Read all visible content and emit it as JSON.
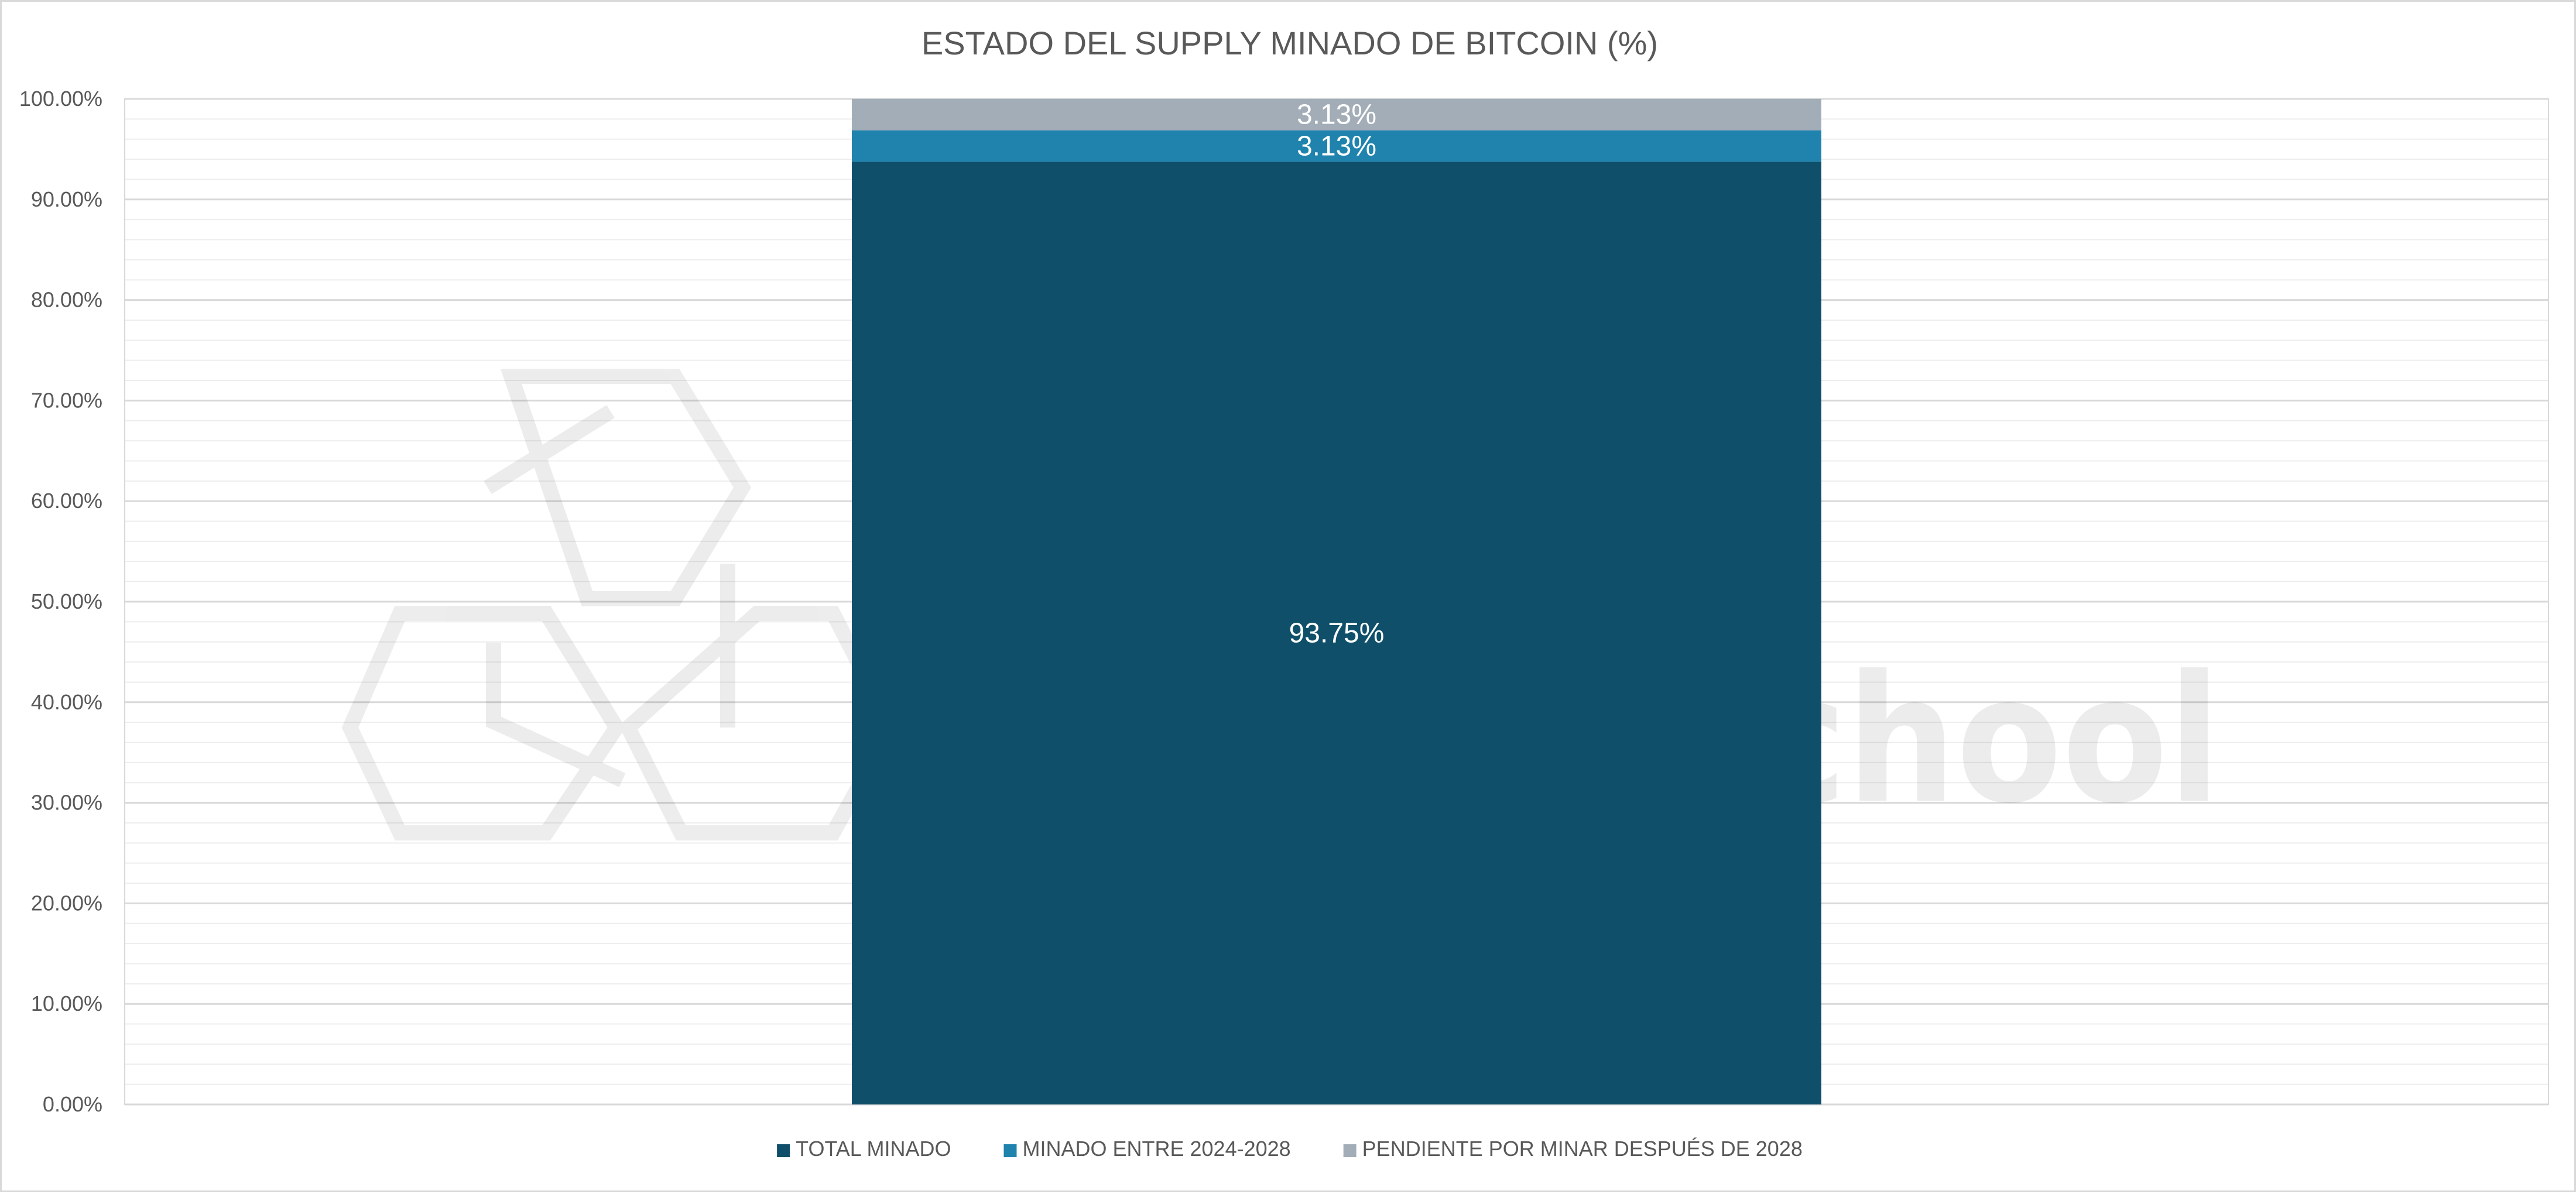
{
  "chart_data": {
    "type": "bar",
    "stacked": true,
    "title": "ESTADO DEL SUPPLY MINADO DE BITCOIN (%)",
    "categories": [
      ""
    ],
    "series": [
      {
        "name": "TOTAL MINADO",
        "values": [
          93.75
        ],
        "label": "93.75%",
        "color": "#0f4f69"
      },
      {
        "name": "MINADO ENTRE 2024-2028",
        "values": [
          3.13
        ],
        "label": "3.13%",
        "color": "#1f83ad"
      },
      {
        "name": "PENDIENTE POR MINAR DESPUÉS DE 2028",
        "values": [
          3.13
        ],
        "label": "3.13%",
        "color": "#a2adb7"
      }
    ],
    "ylim": [
      0,
      100
    ],
    "yticks": [
      "0.00%",
      "10.00%",
      "20.00%",
      "30.00%",
      "40.00%",
      "50.00%",
      "60.00%",
      "70.00%",
      "80.00%",
      "90.00%",
      "100.00%"
    ],
    "xlabel": "",
    "ylabel": "",
    "grid": true,
    "legend_position": "bottom"
  },
  "watermark": {
    "text": "OnChainSchool"
  }
}
